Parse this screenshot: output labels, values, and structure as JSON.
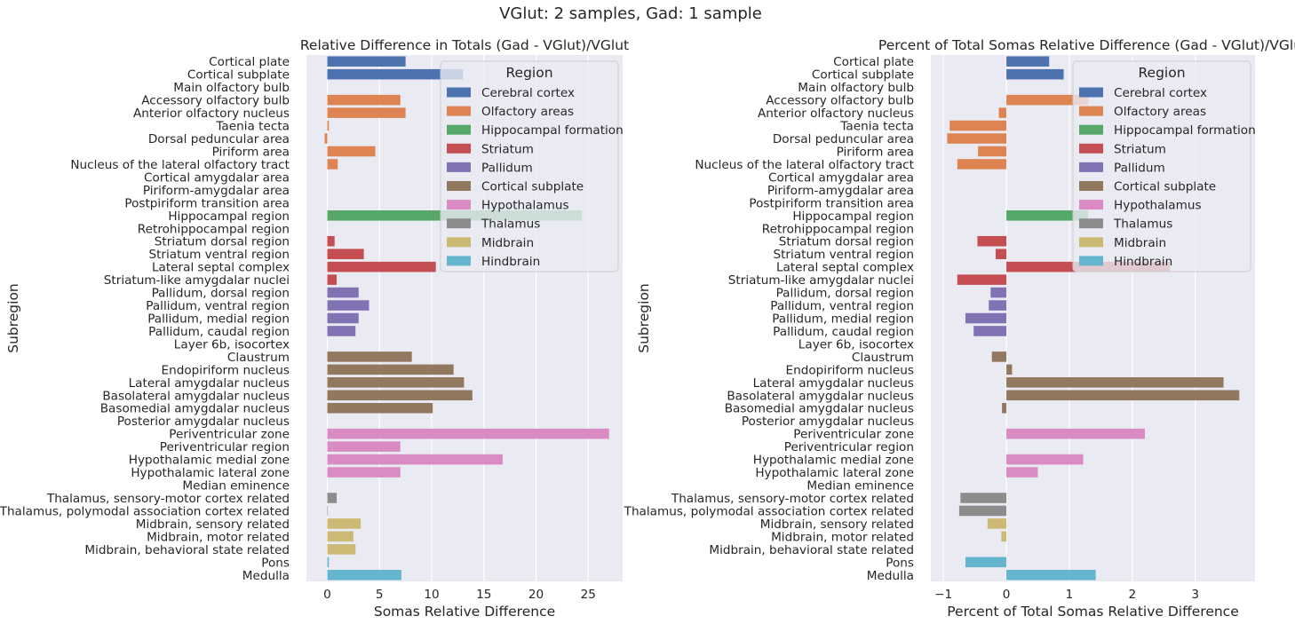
{
  "figure": {
    "suptitle": "VGlut: 2 samples, Gad: 1 sample"
  },
  "region_colors": {
    "Cerebral cortex": "#4c72b0",
    "Olfactory areas": "#dd8452",
    "Hippocampal formation": "#55a868",
    "Striatum": "#c44e52",
    "Pallidum": "#8172b3",
    "Cortical subplate": "#937860",
    "Hypothalamus": "#da8bc3",
    "Thalamus": "#8c8c8c",
    "Midbrain": "#ccb974",
    "Hindbrain": "#64b5cd"
  },
  "style": {
    "axes_background": "#eaeaf2",
    "grid_color": "#ffffff",
    "text_color": "#262626"
  },
  "chart_data": [
    {
      "type": "bar",
      "orientation": "horizontal",
      "title": "Relative Difference in Totals (Gad - VGlut)/VGlut",
      "xlabel": "Somas Relative Difference",
      "ylabel": "Subregion",
      "xlim": [
        -2,
        28.3
      ],
      "xticks": [
        0,
        5,
        10,
        15,
        20,
        25
      ],
      "grid": true,
      "legend": {
        "title": "Region",
        "placement": "upper right",
        "entries": [
          "Cerebral cortex",
          "Olfactory areas",
          "Hippocampal formation",
          "Striatum",
          "Pallidum",
          "Cortical subplate",
          "Hypothalamus",
          "Thalamus",
          "Midbrain",
          "Hindbrain"
        ]
      },
      "bars": [
        {
          "subregion": "Cortical plate",
          "region": "Cerebral cortex",
          "value": 7.5
        },
        {
          "subregion": "Cortical subplate",
          "region": "Cerebral cortex",
          "value": 13.0
        },
        {
          "subregion": "Main olfactory bulb",
          "region": "Olfactory areas",
          "value": 0
        },
        {
          "subregion": "Accessory olfactory bulb",
          "region": "Olfactory areas",
          "value": 7.0
        },
        {
          "subregion": "Anterior olfactory nucleus",
          "region": "Olfactory areas",
          "value": 7.5
        },
        {
          "subregion": "Taenia tecta",
          "region": "Olfactory areas",
          "value": 0.15
        },
        {
          "subregion": "Dorsal peduncular area",
          "region": "Olfactory areas",
          "value": -0.25
        },
        {
          "subregion": "Piriform area",
          "region": "Olfactory areas",
          "value": 4.6
        },
        {
          "subregion": "Nucleus of the lateral olfactory tract",
          "region": "Olfactory areas",
          "value": 1.0
        },
        {
          "subregion": "Cortical amygdalar area",
          "region": "Olfactory areas",
          "value": 0
        },
        {
          "subregion": "Piriform-amygdalar area",
          "region": "Olfactory areas",
          "value": 0
        },
        {
          "subregion": "Postpiriform transition area",
          "region": "Olfactory areas",
          "value": 0
        },
        {
          "subregion": "Hippocampal region",
          "region": "Hippocampal formation",
          "value": 24.4
        },
        {
          "subregion": "Retrohippocampal region",
          "region": "Hippocampal formation",
          "value": 0
        },
        {
          "subregion": "Striatum dorsal region",
          "region": "Striatum",
          "value": 0.7
        },
        {
          "subregion": "Striatum ventral region",
          "region": "Striatum",
          "value": 3.5
        },
        {
          "subregion": "Lateral septal complex",
          "region": "Striatum",
          "value": 10.4
        },
        {
          "subregion": "Striatum-like amygdalar nuclei",
          "region": "Striatum",
          "value": 0.9
        },
        {
          "subregion": "Pallidum, dorsal region",
          "region": "Pallidum",
          "value": 3.0
        },
        {
          "subregion": "Pallidum, ventral region",
          "region": "Pallidum",
          "value": 4.0
        },
        {
          "subregion": "Pallidum, medial region",
          "region": "Pallidum",
          "value": 3.0
        },
        {
          "subregion": "Pallidum, caudal region",
          "region": "Pallidum",
          "value": 2.7
        },
        {
          "subregion": "Layer 6b, isocortex",
          "region": "Cortical subplate",
          "value": 0
        },
        {
          "subregion": "Claustrum",
          "region": "Cortical subplate",
          "value": 8.1
        },
        {
          "subregion": "Endopiriform nucleus",
          "region": "Cortical subplate",
          "value": 12.1
        },
        {
          "subregion": "Lateral amygdalar nucleus",
          "region": "Cortical subplate",
          "value": 13.1
        },
        {
          "subregion": "Basolateral amygdalar nucleus",
          "region": "Cortical subplate",
          "value": 13.9
        },
        {
          "subregion": "Basomedial amygdalar nucleus",
          "region": "Cortical subplate",
          "value": 10.1
        },
        {
          "subregion": "Posterior amygdalar nucleus",
          "region": "Cortical subplate",
          "value": 0
        },
        {
          "subregion": "Periventricular zone",
          "region": "Hypothalamus",
          "value": 27.0
        },
        {
          "subregion": "Periventricular region",
          "region": "Hypothalamus",
          "value": 7.0
        },
        {
          "subregion": "Hypothalamic medial zone",
          "region": "Hypothalamus",
          "value": 16.8
        },
        {
          "subregion": "Hypothalamic lateral zone",
          "region": "Hypothalamus",
          "value": 7.0
        },
        {
          "subregion": "Median eminence",
          "region": "Hypothalamus",
          "value": 0
        },
        {
          "subregion": "Thalamus, sensory-motor cortex related",
          "region": "Thalamus",
          "value": 0.9
        },
        {
          "subregion": "Thalamus, polymodal association cortex related",
          "region": "Thalamus",
          "value": 0.05
        },
        {
          "subregion": "Midbrain, sensory related",
          "region": "Midbrain",
          "value": 3.2
        },
        {
          "subregion": "Midbrain, motor related",
          "region": "Midbrain",
          "value": 2.5
        },
        {
          "subregion": "Midbrain, behavioral state related",
          "region": "Midbrain",
          "value": 2.7
        },
        {
          "subregion": "Pons",
          "region": "Hindbrain",
          "value": 0.15
        },
        {
          "subregion": "Medulla",
          "region": "Hindbrain",
          "value": 7.1
        }
      ]
    },
    {
      "type": "bar",
      "orientation": "horizontal",
      "title": "Percent of Total Somas Relative Difference (Gad - VGlut)/VGlut",
      "xlabel": "Percent of Total Somas Relative Difference",
      "ylabel": "Subregion",
      "xlim": [
        -1.2,
        3.95
      ],
      "xticks": [
        -1,
        0,
        1,
        2,
        3
      ],
      "grid": true,
      "legend": {
        "title": "Region",
        "placement": "upper right",
        "entries": [
          "Cerebral cortex",
          "Olfactory areas",
          "Hippocampal formation",
          "Striatum",
          "Pallidum",
          "Cortical subplate",
          "Hypothalamus",
          "Thalamus",
          "Midbrain",
          "Hindbrain"
        ]
      },
      "bars": [
        {
          "subregion": "Cortical plate",
          "region": "Cerebral cortex",
          "value": 0.68
        },
        {
          "subregion": "Cortical subplate",
          "region": "Cerebral cortex",
          "value": 0.91
        },
        {
          "subregion": "Main olfactory bulb",
          "region": "Olfactory areas",
          "value": 0
        },
        {
          "subregion": "Accessory olfactory bulb",
          "region": "Olfactory areas",
          "value": 1.3
        },
        {
          "subregion": "Anterior olfactory nucleus",
          "region": "Olfactory areas",
          "value": -0.12
        },
        {
          "subregion": "Taenia tecta",
          "region": "Olfactory areas",
          "value": -0.9
        },
        {
          "subregion": "Dorsal peduncular area",
          "region": "Olfactory areas",
          "value": -0.94
        },
        {
          "subregion": "Piriform area",
          "region": "Olfactory areas",
          "value": -0.45
        },
        {
          "subregion": "Nucleus of the lateral olfactory tract",
          "region": "Olfactory areas",
          "value": -0.78
        },
        {
          "subregion": "Cortical amygdalar area",
          "region": "Olfactory areas",
          "value": 0
        },
        {
          "subregion": "Piriform-amygdalar area",
          "region": "Olfactory areas",
          "value": 0
        },
        {
          "subregion": "Postpiriform transition area",
          "region": "Olfactory areas",
          "value": 0
        },
        {
          "subregion": "Hippocampal region",
          "region": "Hippocampal formation",
          "value": 1.3
        },
        {
          "subregion": "Retrohippocampal region",
          "region": "Hippocampal formation",
          "value": 0
        },
        {
          "subregion": "Striatum dorsal region",
          "region": "Striatum",
          "value": -0.46
        },
        {
          "subregion": "Striatum ventral region",
          "region": "Striatum",
          "value": -0.17
        },
        {
          "subregion": "Lateral septal complex",
          "region": "Striatum",
          "value": 2.6
        },
        {
          "subregion": "Striatum-like amygdalar nuclei",
          "region": "Striatum",
          "value": -0.78
        },
        {
          "subregion": "Pallidum, dorsal region",
          "region": "Pallidum",
          "value": -0.25
        },
        {
          "subregion": "Pallidum, ventral region",
          "region": "Pallidum",
          "value": -0.28
        },
        {
          "subregion": "Pallidum, medial region",
          "region": "Pallidum",
          "value": -0.65
        },
        {
          "subregion": "Pallidum, caudal region",
          "region": "Pallidum",
          "value": -0.52
        },
        {
          "subregion": "Layer 6b, isocortex",
          "region": "Cortical subplate",
          "value": 0
        },
        {
          "subregion": "Claustrum",
          "region": "Cortical subplate",
          "value": -0.23
        },
        {
          "subregion": "Endopiriform nucleus",
          "region": "Cortical subplate",
          "value": 0.09
        },
        {
          "subregion": "Lateral amygdalar nucleus",
          "region": "Cortical subplate",
          "value": 3.45
        },
        {
          "subregion": "Basolateral amygdalar nucleus",
          "region": "Cortical subplate",
          "value": 3.7
        },
        {
          "subregion": "Basomedial amygdalar nucleus",
          "region": "Cortical subplate",
          "value": -0.07
        },
        {
          "subregion": "Posterior amygdalar nucleus",
          "region": "Cortical subplate",
          "value": 0
        },
        {
          "subregion": "Periventricular zone",
          "region": "Hypothalamus",
          "value": 2.2
        },
        {
          "subregion": "Periventricular region",
          "region": "Hypothalamus",
          "value": 0
        },
        {
          "subregion": "Hypothalamic medial zone",
          "region": "Hypothalamus",
          "value": 1.22
        },
        {
          "subregion": "Hypothalamic lateral zone",
          "region": "Hypothalamus",
          "value": 0.5
        },
        {
          "subregion": "Median eminence",
          "region": "Hypothalamus",
          "value": 0
        },
        {
          "subregion": "Thalamus, sensory-motor cortex related",
          "region": "Thalamus",
          "value": -0.73
        },
        {
          "subregion": "Thalamus, polymodal association cortex related",
          "region": "Thalamus",
          "value": -0.75
        },
        {
          "subregion": "Midbrain, sensory related",
          "region": "Midbrain",
          "value": -0.3
        },
        {
          "subregion": "Midbrain, motor related",
          "region": "Midbrain",
          "value": -0.08
        },
        {
          "subregion": "Midbrain, behavioral state related",
          "region": "Midbrain",
          "value": 0
        },
        {
          "subregion": "Pons",
          "region": "Hindbrain",
          "value": -0.65
        },
        {
          "subregion": "Medulla",
          "region": "Hindbrain",
          "value": 1.42
        }
      ]
    }
  ]
}
